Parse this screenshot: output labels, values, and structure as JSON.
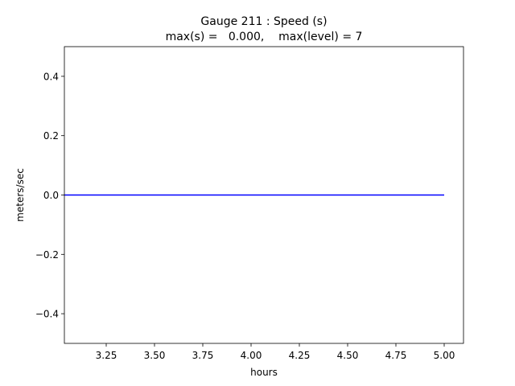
{
  "chart_data": {
    "type": "line",
    "title": "Gauge 211 : Speed (s)",
    "subtitle": "max(s) =   0.000,    max(level) = 7",
    "x_label": "hours",
    "y_label": "meters/sec",
    "x": [
      3.0333,
      5.0
    ],
    "series": [
      {
        "color": "#0000ff",
        "values": [
          0,
          0
        ]
      }
    ],
    "xlim": [
      3.0333,
      5.1
    ],
    "xticks": [
      3.25,
      {
        "value": 3.5,
        "label": "3.50"
      },
      3.75,
      {
        "value": 4,
        "label": "4.00"
      },
      4.25,
      {
        "value": 4.5,
        "label": "4.50"
      },
      4.75,
      {
        "value": 5,
        "label": "5.00"
      }
    ],
    "ylim": [
      -0.5,
      0.5
    ],
    "yticks": [
      {
        "value": -0.4,
        "label": "−0.4"
      },
      {
        "value": -0.2,
        "label": "−0.2"
      },
      {
        "value": 0,
        "label": "0.0"
      },
      0.2,
      0.4
    ]
  }
}
